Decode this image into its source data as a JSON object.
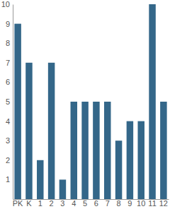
{
  "chart_data": {
    "type": "bar",
    "categories": [
      "PK",
      "K",
      "1",
      "2",
      "3",
      "4",
      "5",
      "6",
      "7",
      "8",
      "9",
      "10",
      "11",
      "12"
    ],
    "values": [
      9,
      7,
      2,
      7,
      1,
      5,
      5,
      5,
      5,
      3,
      4,
      4,
      10,
      5
    ],
    "color": "#346789",
    "ylim": [
      0,
      10
    ],
    "yticks": [
      1,
      2,
      3,
      4,
      5,
      6,
      7,
      8,
      9,
      10
    ],
    "grid": false
  }
}
